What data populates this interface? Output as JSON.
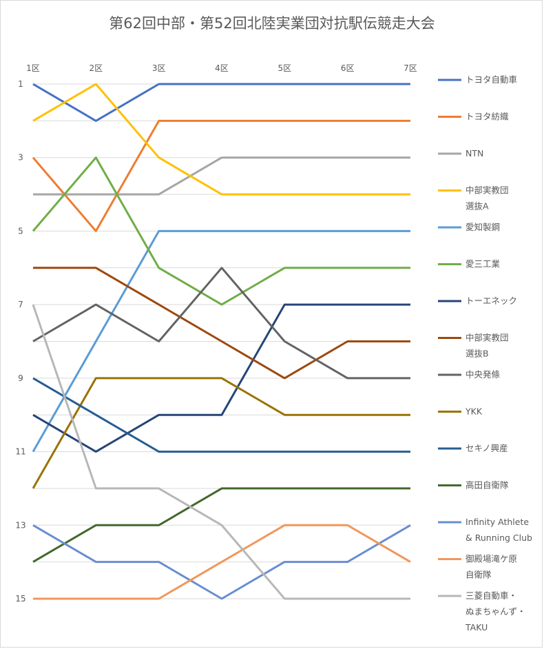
{
  "chart_data": {
    "type": "line",
    "title": "第62回中部・第52回北陸実業団対抗駅伝競走大会",
    "categories": [
      "1区",
      "2区",
      "3区",
      "4区",
      "5区",
      "6区",
      "7区"
    ],
    "y_ticks": [
      "1",
      "3",
      "5",
      "7",
      "9",
      "11",
      "13",
      "15"
    ],
    "ylim": [
      1,
      15
    ],
    "y_reversed": true,
    "grid": true,
    "legend_position": "right",
    "series": [
      {
        "name": "トヨタ自動車",
        "legend_lines": [
          "トヨタ自動車"
        ],
        "color": "#4472c4",
        "values": [
          1,
          2,
          1,
          1,
          1,
          1,
          1
        ]
      },
      {
        "name": "トヨタ紡織",
        "legend_lines": [
          "トヨタ紡織"
        ],
        "color": "#ed7d31",
        "values": [
          3,
          5,
          2,
          2,
          2,
          2,
          2
        ]
      },
      {
        "name": "NTN",
        "legend_lines": [
          "NTN"
        ],
        "color": "#a5a5a5",
        "values": [
          4,
          4,
          4,
          3,
          3,
          3,
          3
        ]
      },
      {
        "name": "中部実教団選抜A",
        "legend_lines": [
          "中部実教団",
          "選抜A"
        ],
        "color": "#ffc000",
        "values": [
          2,
          1,
          3,
          4,
          4,
          4,
          4
        ]
      },
      {
        "name": "愛知製鋼",
        "legend_lines": [
          "愛知製鋼"
        ],
        "color": "#5b9bd5",
        "values": [
          11,
          8,
          5,
          5,
          5,
          5,
          5
        ]
      },
      {
        "name": "愛三工業",
        "legend_lines": [
          "愛三工業"
        ],
        "color": "#70ad47",
        "values": [
          5,
          3,
          6,
          7,
          6,
          6,
          6
        ]
      },
      {
        "name": "トーエネック",
        "legend_lines": [
          "トーエネック"
        ],
        "color": "#264478",
        "values": [
          10,
          11,
          10,
          10,
          7,
          7,
          7
        ]
      },
      {
        "name": "中部実教団選抜B",
        "legend_lines": [
          "中部実教団",
          "選抜B"
        ],
        "color": "#9e480e",
        "values": [
          6,
          6,
          7,
          8,
          9,
          8,
          8
        ]
      },
      {
        "name": "中央発條",
        "legend_lines": [
          "中央発條"
        ],
        "color": "#636363",
        "values": [
          8,
          7,
          8,
          6,
          8,
          9,
          9
        ]
      },
      {
        "name": "YKK",
        "legend_lines": [
          "YKK"
        ],
        "color": "#997300",
        "values": [
          12,
          9,
          9,
          9,
          10,
          10,
          10
        ]
      },
      {
        "name": "セキノ興産",
        "legend_lines": [
          "セキノ興産"
        ],
        "color": "#255e91",
        "values": [
          9,
          10,
          11,
          11,
          11,
          11,
          11
        ]
      },
      {
        "name": "高田自衛隊",
        "legend_lines": [
          "高田自衛隊"
        ],
        "color": "#43682b",
        "values": [
          14,
          13,
          13,
          12,
          12,
          12,
          12
        ]
      },
      {
        "name": "Infinity Athlete & Running Club",
        "legend_lines": [
          "Infinity Athlete",
          "& Running Club"
        ],
        "color": "#698ed0",
        "values": [
          13,
          14,
          14,
          15,
          14,
          14,
          13
        ]
      },
      {
        "name": "御殿場滝ケ原自衛隊",
        "legend_lines": [
          "御殿場滝ケ原",
          "自衛隊"
        ],
        "color": "#f1975a",
        "values": [
          15,
          15,
          15,
          14,
          13,
          13,
          14
        ]
      },
      {
        "name": "三菱自動車・ぬまちゃんず・TAKU",
        "legend_lines": [
          "三菱自動車・",
          "ぬまちゃんず・",
          "TAKU"
        ],
        "color": "#b7b7b7",
        "values": [
          7,
          12,
          12,
          13,
          15,
          15,
          15
        ]
      }
    ]
  }
}
